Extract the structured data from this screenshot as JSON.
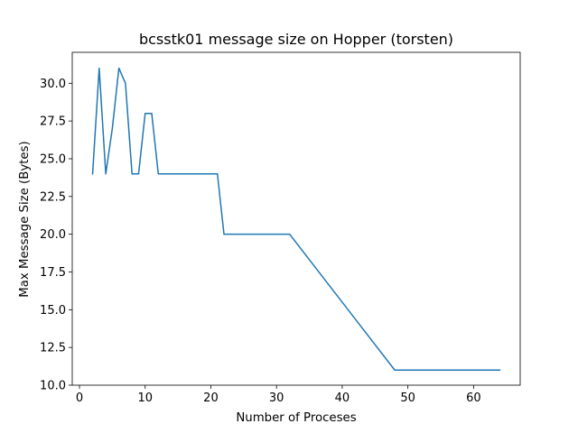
{
  "chart_data": {
    "type": "line",
    "title": "bcsstk01 message size on Hopper (torsten)",
    "xlabel": "Number of Proceses",
    "ylabel": "Max Message Size (Bytes)",
    "xlim": [
      -1.1,
      67.1
    ],
    "ylim": [
      10.0,
      32.05
    ],
    "xticks": [
      0,
      10,
      20,
      30,
      40,
      50,
      60
    ],
    "xtick_labels": [
      "0",
      "10",
      "20",
      "30",
      "40",
      "50",
      "60"
    ],
    "yticks": [
      10.0,
      12.5,
      15.0,
      17.5,
      20.0,
      22.5,
      25.0,
      27.5,
      30.0
    ],
    "ytick_labels": [
      "10.0",
      "12.5",
      "15.0",
      "17.5",
      "20.0",
      "22.5",
      "25.0",
      "27.5",
      "30.0"
    ],
    "grid": false,
    "series": [
      {
        "color": "#1f77b4",
        "x": [
          2,
          3,
          4,
          5,
          6,
          7,
          8,
          9,
          10,
          11,
          12,
          21,
          22,
          32,
          48,
          64
        ],
        "y": [
          24,
          31,
          24,
          27,
          31,
          30,
          24,
          24,
          28,
          28,
          24,
          24,
          20,
          20,
          11,
          11
        ]
      }
    ]
  }
}
